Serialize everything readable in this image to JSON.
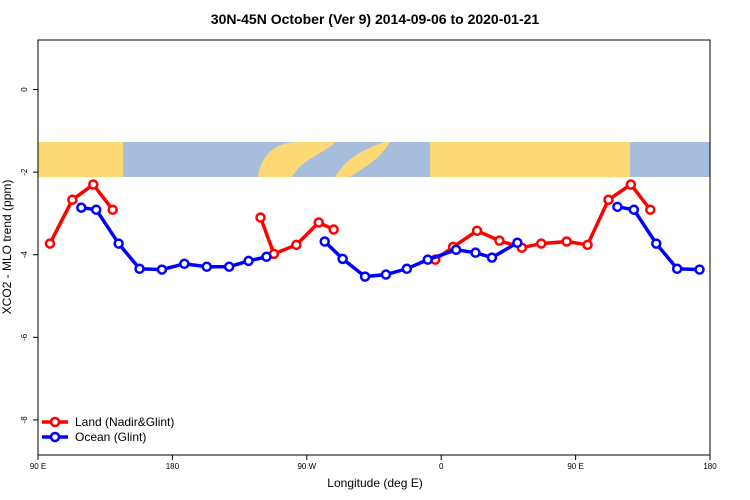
{
  "chart_data": {
    "type": "line",
    "title": "30N-45N October (Ver 9)   2014-09-06 to 2020-01-21",
    "x_label": "Longitude (deg E)",
    "y_label": "XCO2 - MLO trend (ppm)",
    "xlim": [
      90,
      540
    ],
    "ylim": [
      -8.85,
      1.2
    ],
    "xticks": [
      {
        "value": 90,
        "label": "90 E"
      },
      {
        "value": 180,
        "label": "180"
      },
      {
        "value": 270,
        "label": "90 W"
      },
      {
        "value": 360,
        "label": "0"
      },
      {
        "value": 450,
        "label": "90 E"
      },
      {
        "value": 540,
        "label": "180"
      }
    ],
    "yticks": [
      0,
      -2,
      -4,
      -6,
      -8
    ],
    "legend": "bottom-left",
    "series": [
      {
        "name": "Land (Nadir&Glint)",
        "color": "#ff0000",
        "x": [
          98,
          113,
          127,
          140,
          null,
          239,
          248,
          263,
          278,
          288,
          null,
          356,
          368,
          384,
          399,
          414,
          427,
          444,
          458,
          472,
          487,
          500
        ],
        "values": [
          -3.73,
          -2.67,
          -2.3,
          -2.91,
          null,
          -3.1,
          -3.98,
          -3.76,
          -3.22,
          -3.39,
          null,
          -4.12,
          -3.81,
          -3.42,
          -3.66,
          -3.83,
          -3.73,
          -3.68,
          -3.76,
          -2.67,
          -2.3,
          -2.91
        ]
      },
      {
        "name": "Ocean (Glint)",
        "color": "#0000ff",
        "x": [
          119,
          129,
          144,
          158,
          173,
          188,
          203,
          218,
          231,
          243,
          null,
          282,
          294,
          309,
          323,
          337,
          351,
          370,
          383,
          394,
          411,
          null,
          478,
          489,
          504,
          518,
          533
        ],
        "values": [
          -2.86,
          -2.91,
          -3.73,
          -4.34,
          -4.36,
          -4.22,
          -4.29,
          -4.29,
          -4.15,
          -4.05,
          null,
          -3.68,
          -4.1,
          -4.53,
          -4.48,
          -4.34,
          -4.12,
          -3.88,
          -3.95,
          -4.07,
          -3.71,
          null,
          -2.84,
          -2.91,
          -3.73,
          -4.34,
          -4.36
        ]
      }
    ]
  }
}
